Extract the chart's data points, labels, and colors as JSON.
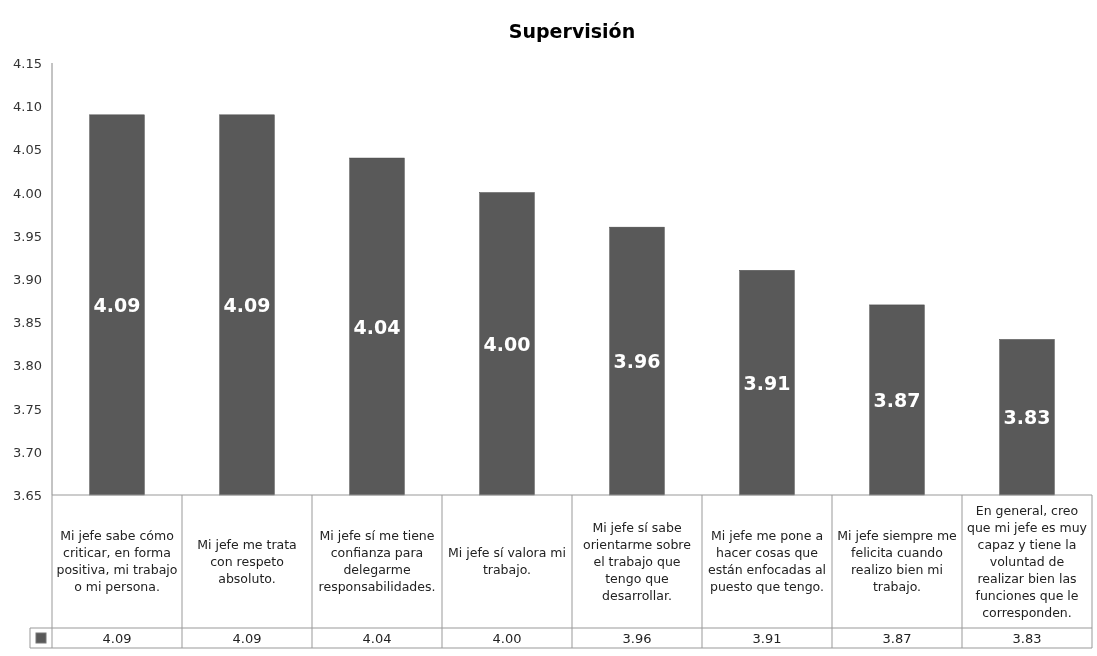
{
  "chart_data": {
    "type": "bar",
    "title": "Supervisión",
    "categories": [
      "Mi jefe sabe cómo criticar, en forma positiva, mi trabajo o mi persona.",
      "Mi jefe me trata con respeto absoluto.",
      "Mi jefe sí me tiene confianza para delegarme responsabilidades.",
      "Mi jefe sí valora mi trabajo.",
      "Mi jefe sí sabe orientarme sobre el trabajo que tengo que desarrollar.",
      "Mi jefe me pone a hacer cosas que están enfocadas al puesto que tengo.",
      "Mi jefe siempre me felicita cuando realizo bien mi trabajo.",
      "En general, creo que mi jefe es muy capaz y tiene la voluntad de realizar bien las funciones que le corresponden."
    ],
    "values": [
      4.09,
      4.09,
      4.04,
      4.0,
      3.96,
      3.91,
      3.87,
      3.83
    ],
    "value_labels": [
      "4.09",
      "4.09",
      "4.04",
      "4.00",
      "3.96",
      "3.91",
      "3.87",
      "3.83"
    ],
    "color": "#595959",
    "ylim": [
      3.65,
      4.15
    ],
    "yticks": [
      {
        "value": 3.65,
        "label": "3.65"
      },
      {
        "value": 3.7,
        "label": "3.70"
      },
      {
        "value": 3.75,
        "label": "3.75"
      },
      {
        "value": 3.8,
        "label": "3.80"
      },
      {
        "value": 3.85,
        "label": "3.85"
      },
      {
        "value": 3.9,
        "label": "3.90"
      },
      {
        "value": 3.95,
        "label": "3.95"
      },
      {
        "value": 4.0,
        "label": "4.00"
      },
      {
        "value": 4.05,
        "label": "4.05"
      },
      {
        "value": 4.1,
        "label": "4.10"
      },
      {
        "value": 4.15,
        "label": "4.15"
      }
    ],
    "grid": false
  }
}
